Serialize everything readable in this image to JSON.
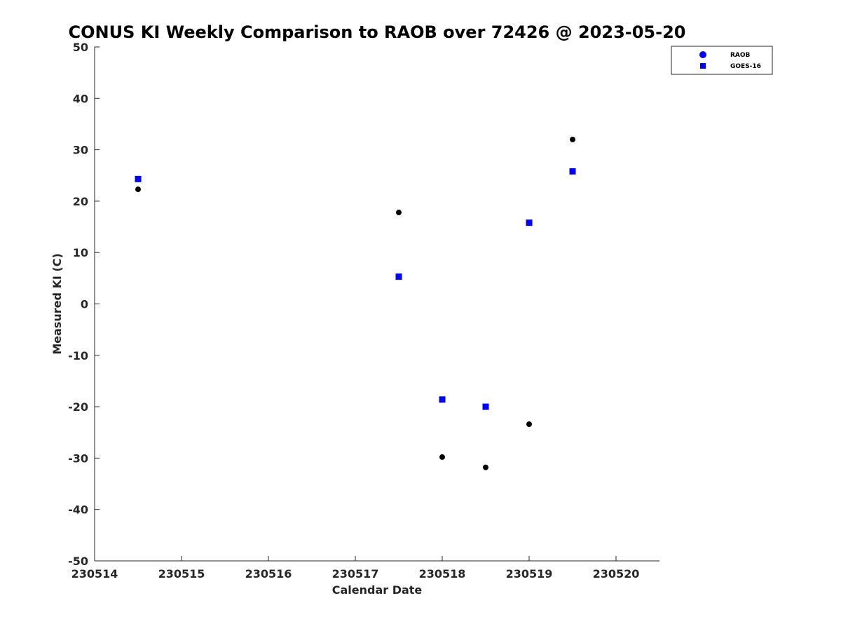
{
  "chart_data": {
    "type": "scatter",
    "title": "CONUS KI Weekly Comparison to RAOB over 72426 @ 2023-05-20",
    "xlabel": "Calendar Date",
    "ylabel": "Measured KI (C)",
    "xlim": [
      230514,
      230520.5
    ],
    "ylim": [
      -50,
      50
    ],
    "xticks": [
      230514,
      230515,
      230516,
      230517,
      230518,
      230519,
      230520
    ],
    "xtick_labels": [
      "230514",
      "230515",
      "230516",
      "230517",
      "230518",
      "230519",
      "230520"
    ],
    "yticks": [
      -50,
      -40,
      -30,
      -20,
      -10,
      0,
      10,
      20,
      30,
      40,
      50
    ],
    "ytick_labels": [
      "-50",
      "-40",
      "-30",
      "-20",
      "-10",
      "0",
      "10",
      "20",
      "30",
      "40",
      "50"
    ],
    "grid": false,
    "legend_position": "top-right",
    "series": [
      {
        "name": "RAOB",
        "marker": "circle",
        "color": "#000000",
        "legend_color": "#0000ff",
        "x": [
          230514.5,
          230517.5,
          230518.0,
          230518.5,
          230519.0,
          230519.5
        ],
        "y": [
          22.3,
          17.8,
          -29.8,
          -31.8,
          -23.4,
          32.0
        ]
      },
      {
        "name": "GOES-16",
        "marker": "square",
        "color": "#0000ff",
        "legend_color": "#0000ff",
        "x": [
          230514.5,
          230517.5,
          230518.0,
          230518.5,
          230519.0,
          230519.5
        ],
        "y": [
          24.3,
          5.3,
          -18.6,
          -20.0,
          15.8,
          25.8
        ]
      }
    ]
  }
}
